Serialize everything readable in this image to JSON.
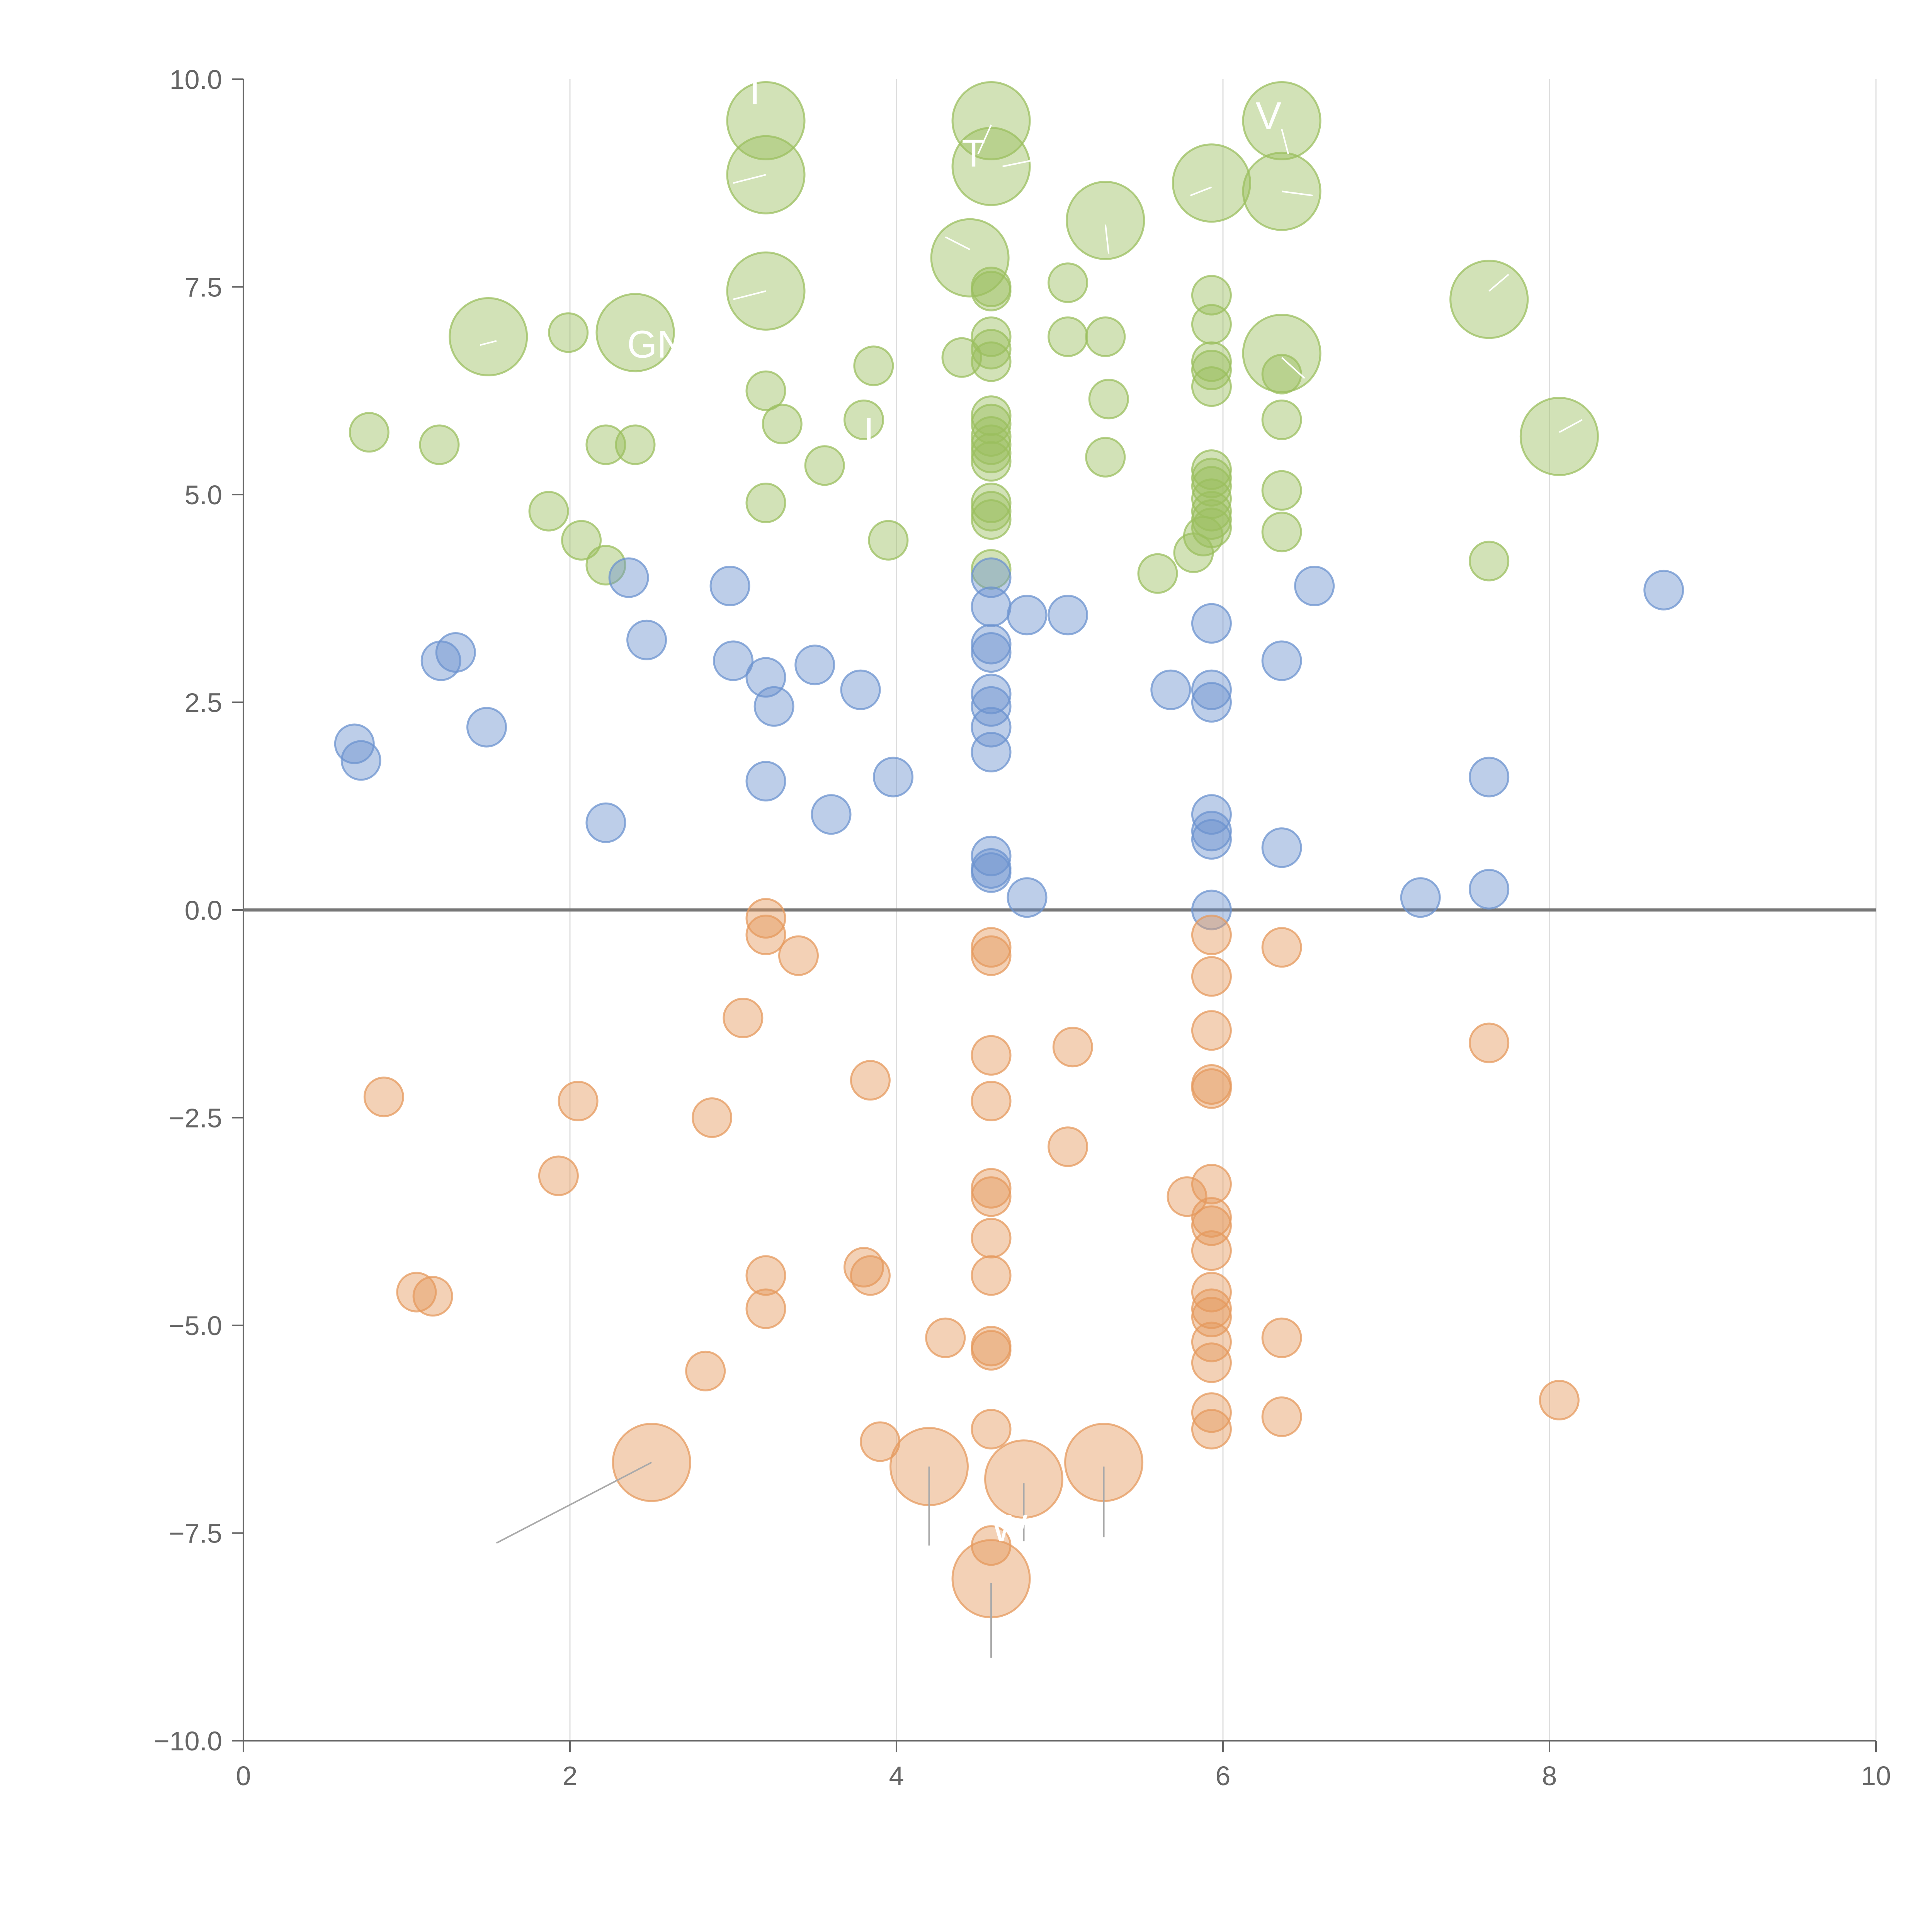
{
  "chart_data": {
    "type": "scatter",
    "xlim": [
      0,
      10
    ],
    "ylim": [
      -10,
      10
    ],
    "x_ticks": [
      0,
      2,
      4,
      6,
      8,
      10
    ],
    "y_ticks": [
      -10,
      -7.5,
      -5,
      -2.5,
      0,
      2.5,
      5,
      7.5,
      10
    ],
    "x_tick_labels": [
      "0",
      "2",
      "4",
      "6",
      "8",
      "10"
    ],
    "y_tick_labels": [
      "−10.0",
      "−7.5",
      "−5.0",
      "−2.5",
      "0.0",
      "2.5",
      "5.0",
      "7.5",
      "10.0"
    ],
    "grid": {
      "vertical": true,
      "horizontal": false
    },
    "zero_line": true,
    "colors": {
      "green": "#9bbf5f",
      "blue": "#6c93cf",
      "orange": "#e59a5d",
      "axis": "#666666",
      "grid": "#dddddd",
      "zero_line": "#777777",
      "leader": "#aaaaaa"
    },
    "series": [
      {
        "color_key": "green",
        "points": [
          [
            3.2,
            9.5,
            3
          ],
          [
            4.58,
            9.5,
            3
          ],
          [
            6.36,
            9.5,
            3
          ],
          [
            3.2,
            8.85,
            3
          ],
          [
            4.58,
            8.95,
            3
          ],
          [
            5.93,
            8.75,
            3
          ],
          [
            6.36,
            8.65,
            3
          ],
          [
            5.28,
            8.3,
            3
          ],
          [
            4.45,
            7.85,
            3
          ],
          [
            3.2,
            7.45,
            3
          ],
          [
            7.63,
            7.35,
            3
          ],
          [
            1.5,
            6.9,
            3
          ],
          [
            2.4,
            6.95,
            3
          ],
          [
            6.36,
            6.7,
            3
          ],
          [
            8.06,
            5.7,
            3
          ],
          [
            4.58,
            7.5,
            1
          ],
          [
            4.58,
            7.45,
            1
          ],
          [
            5.05,
            7.55,
            1
          ],
          [
            5.93,
            7.4,
            1
          ],
          [
            1.99,
            6.95,
            1
          ],
          [
            5.05,
            6.9,
            1
          ],
          [
            5.28,
            6.9,
            1
          ],
          [
            4.58,
            6.9,
            1
          ],
          [
            4.58,
            6.75,
            1
          ],
          [
            5.93,
            7.05,
            1
          ],
          [
            4.4,
            6.65,
            1
          ],
          [
            4.58,
            6.6,
            1
          ],
          [
            3.86,
            6.55,
            1
          ],
          [
            5.93,
            6.6,
            1
          ],
          [
            5.93,
            6.5,
            1
          ],
          [
            6.36,
            6.45,
            1
          ],
          [
            3.2,
            6.25,
            1
          ],
          [
            5.93,
            6.3,
            1
          ],
          [
            5.3,
            6.15,
            1
          ],
          [
            3.8,
            5.9,
            1
          ],
          [
            4.58,
            5.95,
            1
          ],
          [
            4.58,
            5.85,
            1
          ],
          [
            6.36,
            5.9,
            1
          ],
          [
            3.3,
            5.85,
            1
          ],
          [
            0.77,
            5.75,
            1
          ],
          [
            4.58,
            5.7,
            1
          ],
          [
            4.58,
            5.6,
            1
          ],
          [
            1.2,
            5.6,
            1
          ],
          [
            2.22,
            5.6,
            1
          ],
          [
            2.4,
            5.6,
            1
          ],
          [
            4.58,
            5.5,
            1
          ],
          [
            4.58,
            5.4,
            1
          ],
          [
            5.28,
            5.45,
            1
          ],
          [
            3.56,
            5.35,
            1
          ],
          [
            5.93,
            5.3,
            1
          ],
          [
            5.93,
            5.2,
            1
          ],
          [
            5.93,
            5.1,
            1
          ],
          [
            6.36,
            5.05,
            1
          ],
          [
            5.93,
            4.95,
            1
          ],
          [
            3.2,
            4.9,
            1
          ],
          [
            4.58,
            4.9,
            1
          ],
          [
            4.58,
            4.8,
            1
          ],
          [
            1.87,
            4.8,
            1
          ],
          [
            5.93,
            4.8,
            1
          ],
          [
            4.58,
            4.7,
            1
          ],
          [
            5.93,
            4.7,
            1
          ],
          [
            5.93,
            4.6,
            1
          ],
          [
            5.88,
            4.5,
            1
          ],
          [
            6.36,
            4.55,
            1
          ],
          [
            2.07,
            4.45,
            1
          ],
          [
            3.95,
            4.45,
            1
          ],
          [
            5.82,
            4.3,
            1
          ],
          [
            7.63,
            4.2,
            1
          ],
          [
            2.22,
            4.15,
            1
          ],
          [
            4.58,
            4.1,
            1
          ],
          [
            5.6,
            4.05,
            1
          ]
        ]
      },
      {
        "color_key": "blue",
        "points": [
          [
            4.58,
            4.0,
            1
          ],
          [
            2.36,
            4.0,
            1
          ],
          [
            2.98,
            3.9,
            1
          ],
          [
            6.56,
            3.9,
            1
          ],
          [
            8.7,
            3.85,
            1
          ],
          [
            4.58,
            3.65,
            1
          ],
          [
            4.8,
            3.55,
            1
          ],
          [
            5.05,
            3.55,
            1
          ],
          [
            5.93,
            3.45,
            1
          ],
          [
            2.47,
            3.25,
            1
          ],
          [
            4.58,
            3.2,
            1
          ],
          [
            4.58,
            3.1,
            1
          ],
          [
            1.3,
            3.1,
            1
          ],
          [
            3.0,
            3.0,
            1
          ],
          [
            1.21,
            3.0,
            1
          ],
          [
            6.36,
            3.0,
            1
          ],
          [
            3.5,
            2.95,
            1
          ],
          [
            3.2,
            2.8,
            1
          ],
          [
            3.78,
            2.65,
            1
          ],
          [
            5.93,
            2.65,
            1
          ],
          [
            5.68,
            2.65,
            1
          ],
          [
            4.58,
            2.6,
            1
          ],
          [
            4.58,
            2.45,
            1
          ],
          [
            5.93,
            2.5,
            1
          ],
          [
            3.25,
            2.45,
            1
          ],
          [
            4.58,
            2.2,
            1
          ],
          [
            1.49,
            2.2,
            1
          ],
          [
            0.68,
            2.0,
            1
          ],
          [
            4.58,
            1.9,
            1
          ],
          [
            0.72,
            1.8,
            1
          ],
          [
            3.98,
            1.6,
            1
          ],
          [
            7.63,
            1.6,
            1
          ],
          [
            3.2,
            1.55,
            1
          ],
          [
            5.93,
            1.15,
            1
          ],
          [
            3.6,
            1.15,
            1
          ],
          [
            2.22,
            1.05,
            1
          ],
          [
            5.93,
            0.95,
            1
          ],
          [
            5.93,
            0.85,
            1
          ],
          [
            6.36,
            0.75,
            1
          ],
          [
            4.58,
            0.65,
            1
          ],
          [
            4.58,
            0.5,
            1
          ],
          [
            4.58,
            0.45,
            1
          ],
          [
            7.63,
            0.25,
            1
          ],
          [
            7.21,
            0.15,
            1
          ],
          [
            4.8,
            0.15,
            1
          ],
          [
            5.93,
            0.0,
            1
          ]
        ]
      },
      {
        "color_key": "orange",
        "points": [
          [
            3.2,
            -0.1,
            1
          ],
          [
            3.2,
            -0.3,
            1
          ],
          [
            5.93,
            -0.3,
            1
          ],
          [
            4.58,
            -0.45,
            1
          ],
          [
            6.36,
            -0.45,
            1
          ],
          [
            4.58,
            -0.55,
            1
          ],
          [
            3.4,
            -0.55,
            1
          ],
          [
            5.93,
            -0.8,
            1
          ],
          [
            3.06,
            -1.3,
            1
          ],
          [
            5.93,
            -1.45,
            1
          ],
          [
            7.63,
            -1.6,
            1
          ],
          [
            5.08,
            -1.65,
            1
          ],
          [
            4.58,
            -1.75,
            1
          ],
          [
            3.84,
            -2.05,
            1
          ],
          [
            5.93,
            -2.1,
            1
          ],
          [
            5.93,
            -2.15,
            1
          ],
          [
            0.86,
            -2.25,
            1
          ],
          [
            2.05,
            -2.3,
            1
          ],
          [
            4.58,
            -2.3,
            1
          ],
          [
            2.87,
            -2.5,
            1
          ],
          [
            5.05,
            -2.85,
            1
          ],
          [
            1.93,
            -3.2,
            1
          ],
          [
            5.93,
            -3.3,
            1
          ],
          [
            4.58,
            -3.35,
            1
          ],
          [
            5.78,
            -3.45,
            1
          ],
          [
            4.58,
            -3.45,
            1
          ],
          [
            5.93,
            -3.7,
            1
          ],
          [
            5.93,
            -3.8,
            1
          ],
          [
            4.58,
            -3.95,
            1
          ],
          [
            5.93,
            -4.1,
            1
          ],
          [
            3.8,
            -4.3,
            1
          ],
          [
            3.2,
            -4.4,
            1
          ],
          [
            4.58,
            -4.4,
            1
          ],
          [
            3.84,
            -4.4,
            1
          ],
          [
            1.06,
            -4.6,
            1
          ],
          [
            5.93,
            -4.6,
            1
          ],
          [
            1.16,
            -4.65,
            1
          ],
          [
            3.2,
            -4.8,
            1
          ],
          [
            5.93,
            -4.8,
            1
          ],
          [
            5.93,
            -4.9,
            1
          ],
          [
            4.3,
            -5.15,
            1
          ],
          [
            6.36,
            -5.15,
            1
          ],
          [
            5.93,
            -5.2,
            1
          ],
          [
            4.58,
            -5.25,
            1
          ],
          [
            4.58,
            -5.3,
            1
          ],
          [
            5.93,
            -5.45,
            1
          ],
          [
            2.83,
            -5.55,
            1
          ],
          [
            8.06,
            -5.9,
            1
          ],
          [
            5.93,
            -6.05,
            1
          ],
          [
            6.36,
            -6.1,
            1
          ],
          [
            4.58,
            -6.25,
            1
          ],
          [
            5.93,
            -6.25,
            1
          ],
          [
            3.9,
            -6.4,
            1
          ],
          [
            4.58,
            -7.65,
            1
          ],
          [
            2.5,
            -6.65,
            3
          ],
          [
            4.2,
            -6.7,
            3
          ],
          [
            4.78,
            -6.85,
            3
          ],
          [
            5.27,
            -6.65,
            3
          ],
          [
            4.58,
            -8.05,
            3
          ]
        ]
      }
    ],
    "point_labels": [
      {
        "text": "I",
        "x": 3.1,
        "y": 9.7
      },
      {
        "text": "T",
        "x": 4.4,
        "y": 8.95
      },
      {
        "text": "V",
        "x": 6.2,
        "y": 9.4
      },
      {
        "text": "GN",
        "x": 2.35,
        "y": 6.65
      },
      {
        "text": "L",
        "x": 3.8,
        "y": 5.6
      },
      {
        "text": "W",
        "x": 4.58,
        "y": -7.6
      }
    ],
    "leaders": [
      {
        "x1": 1.55,
        "y1": -7.62,
        "x2": 2.5,
        "y2": -6.65
      },
      {
        "x1": 4.2,
        "y1": -7.65,
        "x2": 4.2,
        "y2": -6.7
      },
      {
        "x1": 4.78,
        "y1": -7.6,
        "x2": 4.78,
        "y2": -6.9
      },
      {
        "x1": 5.27,
        "y1": -7.55,
        "x2": 5.27,
        "y2": -6.7
      },
      {
        "x1": 4.58,
        "y1": -9.0,
        "x2": 4.58,
        "y2": -8.1
      },
      {
        "x1": 3.0,
        "y1": 8.75,
        "x2": 3.2,
        "y2": 8.85
      },
      {
        "x1": 3.0,
        "y1": 7.35,
        "x2": 3.2,
        "y2": 7.45
      },
      {
        "x1": 4.58,
        "y1": 9.45,
        "x2": 4.5,
        "y2": 9.1
      },
      {
        "x1": 4.65,
        "y1": 8.95,
        "x2": 4.9,
        "y2": 9.05
      },
      {
        "x1": 4.45,
        "y1": 7.95,
        "x2": 4.3,
        "y2": 8.1
      },
      {
        "x1": 5.93,
        "y1": 8.7,
        "x2": 5.8,
        "y2": 8.6
      },
      {
        "x1": 6.36,
        "y1": 9.4,
        "x2": 6.4,
        "y2": 9.1
      },
      {
        "x1": 6.36,
        "y1": 8.65,
        "x2": 6.55,
        "y2": 8.6
      },
      {
        "x1": 5.28,
        "y1": 8.25,
        "x2": 5.3,
        "y2": 7.9
      },
      {
        "x1": 7.63,
        "y1": 7.45,
        "x2": 7.75,
        "y2": 7.65
      },
      {
        "x1": 1.55,
        "y1": 6.85,
        "x2": 1.45,
        "y2": 6.8
      },
      {
        "x1": 6.36,
        "y1": 6.65,
        "x2": 6.5,
        "y2": 6.4
      },
      {
        "x1": 8.06,
        "y1": 5.75,
        "x2": 8.2,
        "y2": 5.9
      }
    ]
  }
}
